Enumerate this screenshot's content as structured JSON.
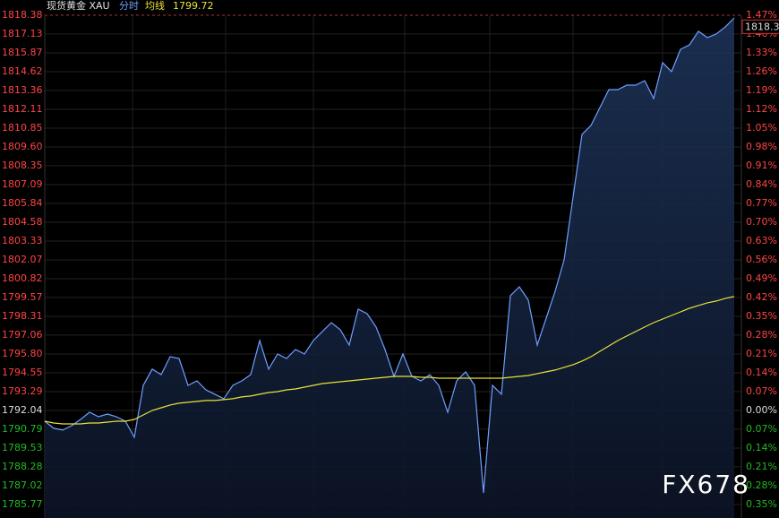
{
  "chart_data": {
    "type": "line",
    "title": "现货黄金 XAU",
    "avg_value": 1799.72,
    "current_price_tag": 1818.3,
    "watermark": "FX678",
    "base": 1792.04,
    "up_color": "#ff4444",
    "down_color": "#22bb22",
    "flat_color": "#dddddd",
    "grid": true,
    "series": [
      {
        "name": "分时",
        "color": "#6f9fff",
        "values": [
          1791.32,
          1790.85,
          1790.73,
          1791.02,
          1791.44,
          1791.92,
          1791.62,
          1791.8,
          1791.62,
          1791.32,
          1790.25,
          1793.71,
          1794.79,
          1794.43,
          1795.62,
          1795.5,
          1793.71,
          1794.01,
          1793.41,
          1793.12,
          1792.82,
          1793.71,
          1794.01,
          1794.43,
          1796.7,
          1794.79,
          1795.8,
          1795.5,
          1796.1,
          1795.8,
          1796.7,
          1797.3,
          1797.89,
          1797.42,
          1796.4,
          1798.79,
          1798.49,
          1797.6,
          1796.1,
          1794.31,
          1795.8,
          1794.31,
          1794.01,
          1794.43,
          1793.71,
          1791.92,
          1794.01,
          1794.61,
          1793.71,
          1786.55,
          1793.71,
          1793.12,
          1799.69,
          1800.28,
          1799.39,
          1796.4,
          1798.19,
          1799.98,
          1802.08,
          1806.26,
          1810.44,
          1811.03,
          1812.23,
          1813.42,
          1813.42,
          1813.72,
          1813.72,
          1814.02,
          1812.83,
          1815.22,
          1814.62,
          1816.11,
          1816.41,
          1817.31,
          1816.89,
          1817.13,
          1817.6,
          1818.2
        ]
      },
      {
        "name": "均线",
        "color": "#e8e23a",
        "values": [
          1791.32,
          1791.2,
          1791.14,
          1791.14,
          1791.14,
          1791.2,
          1791.2,
          1791.26,
          1791.32,
          1791.32,
          1791.44,
          1791.74,
          1792.04,
          1792.22,
          1792.4,
          1792.52,
          1792.58,
          1792.64,
          1792.7,
          1792.7,
          1792.76,
          1792.82,
          1792.94,
          1793.0,
          1793.12,
          1793.23,
          1793.29,
          1793.41,
          1793.47,
          1793.59,
          1793.71,
          1793.83,
          1793.89,
          1793.95,
          1794.01,
          1794.07,
          1794.13,
          1794.19,
          1794.25,
          1794.31,
          1794.31,
          1794.31,
          1794.25,
          1794.25,
          1794.19,
          1794.19,
          1794.19,
          1794.19,
          1794.19,
          1794.19,
          1794.19,
          1794.19,
          1794.25,
          1794.31,
          1794.37,
          1794.49,
          1794.61,
          1794.73,
          1794.91,
          1795.09,
          1795.33,
          1795.62,
          1795.98,
          1796.34,
          1796.7,
          1797.0,
          1797.3,
          1797.6,
          1797.89,
          1798.13,
          1798.37,
          1798.61,
          1798.85,
          1799.03,
          1799.21,
          1799.33,
          1799.51,
          1799.63
        ]
      }
    ],
    "ylim": [
      1784.87,
      1818.38
    ],
    "yticks": [
      1818.38,
      1817.13,
      1815.87,
      1814.62,
      1813.36,
      1812.11,
      1810.85,
      {
        "value": 1809.6,
        "label": "1809.60"
      },
      1808.35,
      1807.09,
      1805.84,
      1804.58,
      1803.33,
      1802.07,
      1800.82,
      1799.57,
      1798.31,
      1797.06,
      {
        "value": 1795.8,
        "label": "1795.80"
      },
      1794.55,
      1793.29,
      1792.04,
      1790.79,
      1789.53,
      1788.28,
      1787.02,
      1785.77
    ],
    "y2lim": [
      -0.4,
      1.47
    ],
    "y2ticks": [
      {
        "value": 1.47,
        "label": "1.47%"
      },
      {
        "value": 1.4,
        "label": "1.40%"
      },
      {
        "value": 1.33,
        "label": "1.33%"
      },
      {
        "value": 1.26,
        "label": "1.26%"
      },
      {
        "value": 1.19,
        "label": "1.19%"
      },
      {
        "value": 1.12,
        "label": "1.12%"
      },
      {
        "value": 1.05,
        "label": "1.05%"
      },
      {
        "value": 0.98,
        "label": "0.98%"
      },
      {
        "value": 0.91,
        "label": "0.91%"
      },
      {
        "value": 0.84,
        "label": "0.84%"
      },
      {
        "value": 0.77,
        "label": "0.77%"
      },
      {
        "value": 0.7,
        "label": "0.70%"
      },
      {
        "value": 0.63,
        "label": "0.63%"
      },
      {
        "value": 0.56,
        "label": "0.56%"
      },
      {
        "value": 0.49,
        "label": "0.49%"
      },
      {
        "value": 0.42,
        "label": "0.42%"
      },
      {
        "value": 0.35,
        "label": "0.35%"
      },
      {
        "value": 0.28,
        "label": "0.28%"
      },
      {
        "value": 0.21,
        "label": "0.21%"
      },
      {
        "value": 0.14,
        "label": "0.14%"
      },
      {
        "value": 0.07,
        "label": "0.07%"
      },
      {
        "value": 0,
        "label": "0.00%"
      },
      {
        "value": -0.07,
        "label": "0.07%"
      },
      {
        "value": -0.14,
        "label": "0.14%"
      },
      {
        "value": -0.21,
        "label": "0.21%"
      },
      {
        "value": -0.28,
        "label": "0.28%"
      },
      {
        "value": -0.35,
        "label": "0.35%"
      }
    ]
  }
}
